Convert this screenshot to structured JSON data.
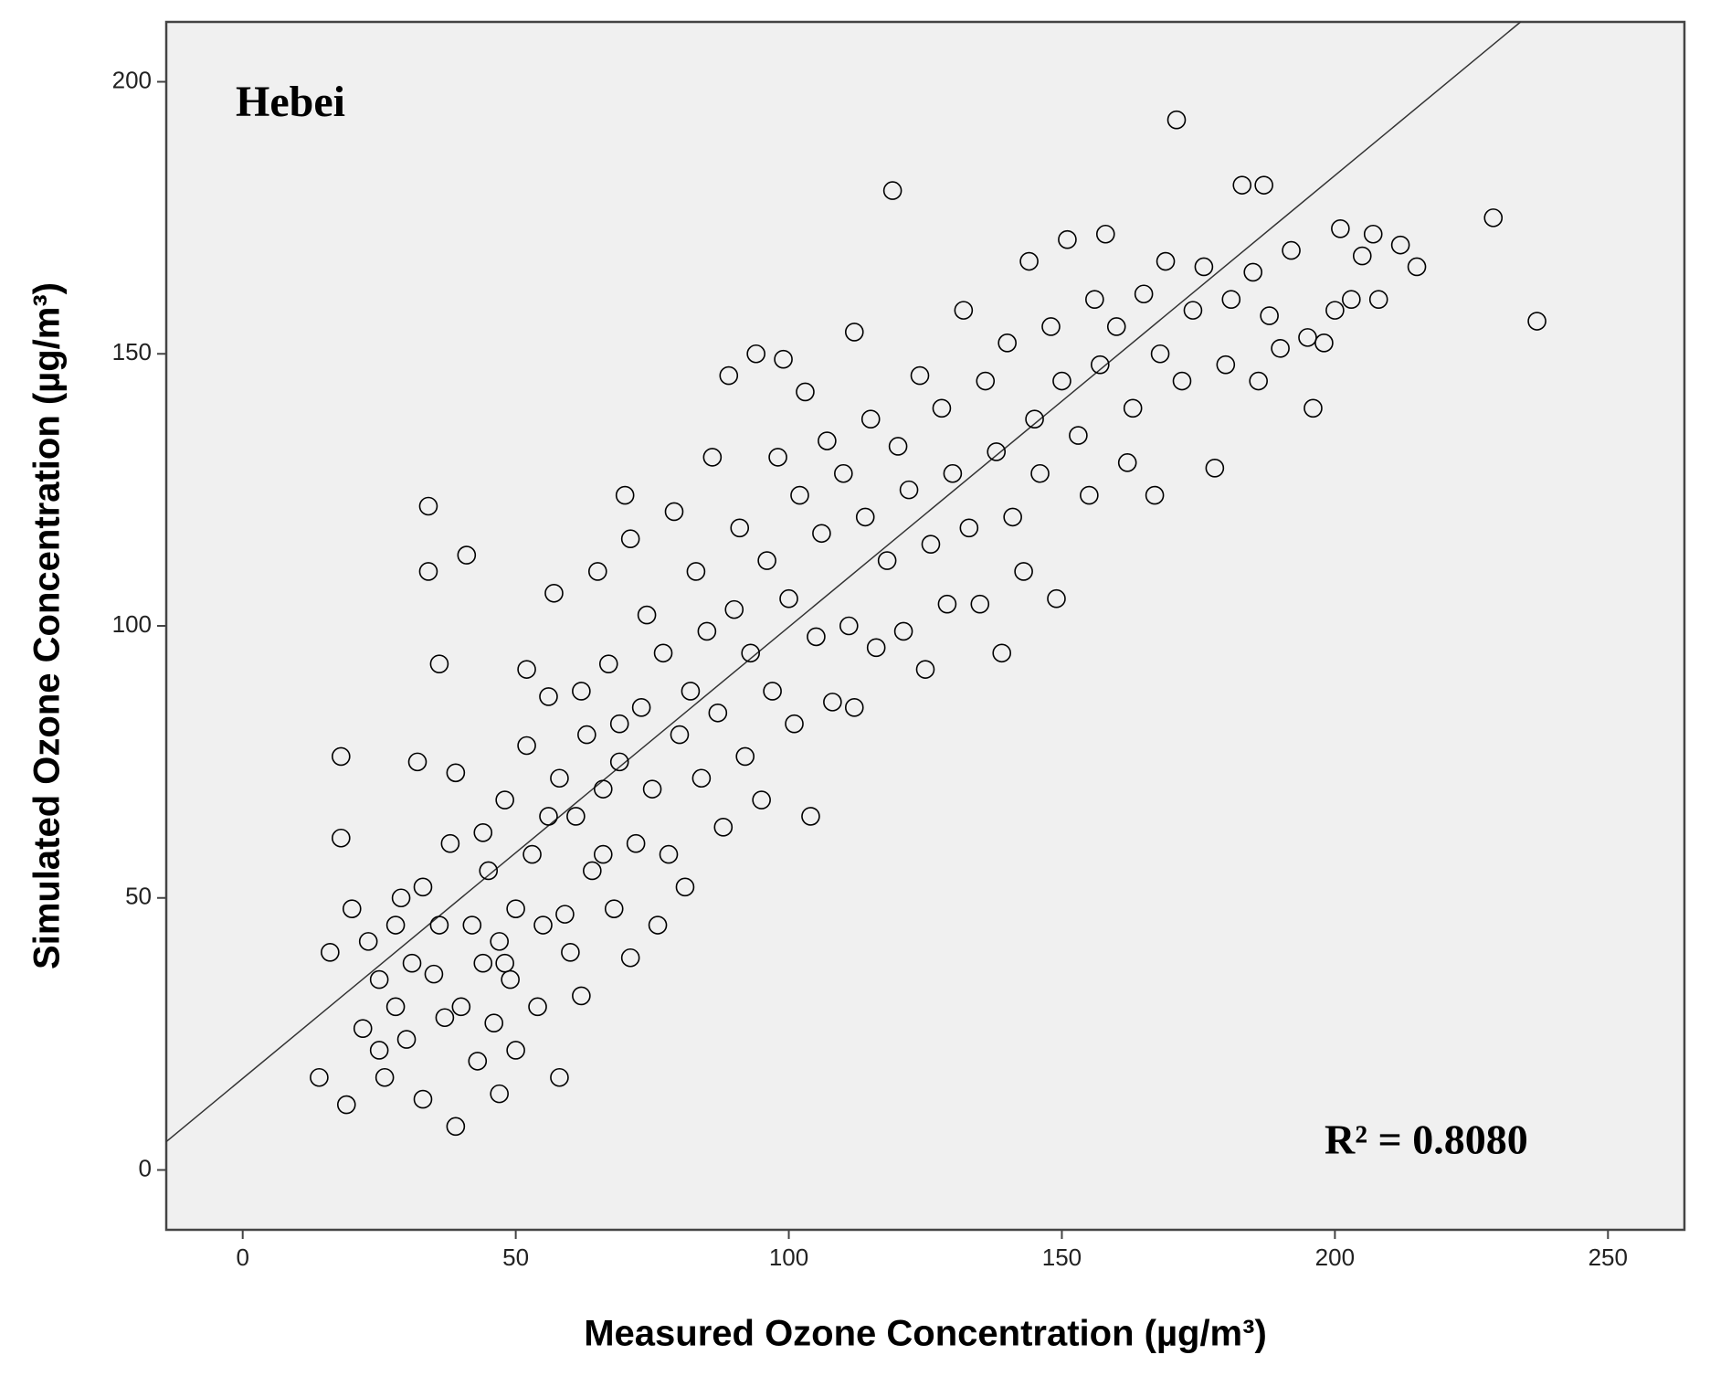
{
  "chart_data": {
    "type": "scatter",
    "title": "Hebei",
    "annotation": "R² = 0.8080",
    "x_label": "Measured Ozone Concentration (µg/m³)",
    "y_label": "Simulated Ozone Concentration (µg/m³)",
    "xlim": [
      -14,
      264
    ],
    "ylim": [
      -11,
      211
    ],
    "xticks": [
      0,
      50,
      100,
      150,
      200,
      250
    ],
    "yticks": [
      0,
      50,
      100,
      150,
      200
    ],
    "grid": false,
    "background": "#f0f0f0",
    "trend_line": {
      "x": [
        -14,
        234
      ],
      "y": [
        5.2,
        211
      ]
    },
    "series": [
      {
        "color": "#000000",
        "x": [
          14,
          16,
          18,
          18,
          19,
          20,
          22,
          23,
          25,
          26,
          28,
          29,
          30,
          31,
          32,
          33,
          34,
          34,
          35,
          36,
          36,
          38,
          39,
          39,
          40,
          41,
          42,
          43,
          44,
          45,
          46,
          47,
          47,
          48,
          49,
          50,
          50,
          52,
          53,
          54,
          55,
          56,
          57,
          58,
          58,
          60,
          61,
          62,
          63,
          64,
          65,
          66,
          67,
          68,
          69,
          70,
          71,
          71,
          72,
          73,
          74,
          75,
          76,
          77,
          78,
          79,
          80,
          81,
          82,
          83,
          84,
          85,
          86,
          87,
          88,
          89,
          90,
          91,
          92,
          93,
          94,
          95,
          96,
          97,
          98,
          99,
          100,
          101,
          102,
          103,
          104,
          105,
          106,
          107,
          108,
          110,
          111,
          112,
          112,
          114,
          115,
          116,
          118,
          119,
          120,
          121,
          122,
          124,
          125,
          126,
          128,
          129,
          130,
          132,
          133,
          135,
          136,
          138,
          139,
          140,
          141,
          143,
          144,
          145,
          146,
          148,
          149,
          150,
          151,
          153,
          155,
          156,
          157,
          158,
          160,
          162,
          163,
          165,
          167,
          168,
          169,
          171,
          172,
          174,
          176,
          178,
          180,
          181,
          183,
          185,
          186,
          187,
          188,
          190,
          192,
          195,
          196,
          198,
          200,
          201,
          203,
          205,
          207,
          208,
          212,
          215,
          229,
          237,
          25,
          28,
          33,
          37,
          44,
          48,
          52,
          56,
          59,
          62,
          66,
          69
        ],
        "y": [
          17,
          40,
          61,
          76,
          12,
          48,
          26,
          42,
          35,
          17,
          30,
          50,
          24,
          38,
          75,
          13,
          122,
          110,
          36,
          93,
          45,
          60,
          73,
          8,
          30,
          113,
          45,
          20,
          38,
          55,
          27,
          14,
          42,
          68,
          35,
          22,
          48,
          92,
          58,
          30,
          45,
          87,
          106,
          17,
          72,
          40,
          65,
          32,
          80,
          55,
          110,
          70,
          93,
          48,
          75,
          124,
          39,
          116,
          60,
          85,
          102,
          70,
          45,
          95,
          58,
          121,
          80,
          52,
          88,
          110,
          72,
          99,
          131,
          84,
          63,
          146,
          103,
          118,
          76,
          95,
          150,
          68,
          112,
          88,
          131,
          149,
          105,
          82,
          124,
          143,
          65,
          98,
          117,
          134,
          86,
          128,
          100,
          154,
          85,
          120,
          138,
          96,
          112,
          180,
          133,
          99,
          125,
          146,
          92,
          115,
          140,
          104,
          128,
          158,
          118,
          104,
          145,
          132,
          95,
          152,
          120,
          110,
          167,
          138,
          128,
          155,
          105,
          145,
          171,
          135,
          124,
          160,
          148,
          172,
          155,
          130,
          140,
          161,
          124,
          150,
          167,
          193,
          145,
          158,
          166,
          129,
          148,
          160,
          181,
          165,
          145,
          181,
          157,
          151,
          169,
          153,
          140,
          152,
          158,
          173,
          160,
          168,
          172,
          160,
          170,
          166,
          175,
          156,
          22,
          45,
          52,
          28,
          62,
          38,
          78,
          65,
          47,
          88,
          58,
          82
        ]
      }
    ]
  }
}
